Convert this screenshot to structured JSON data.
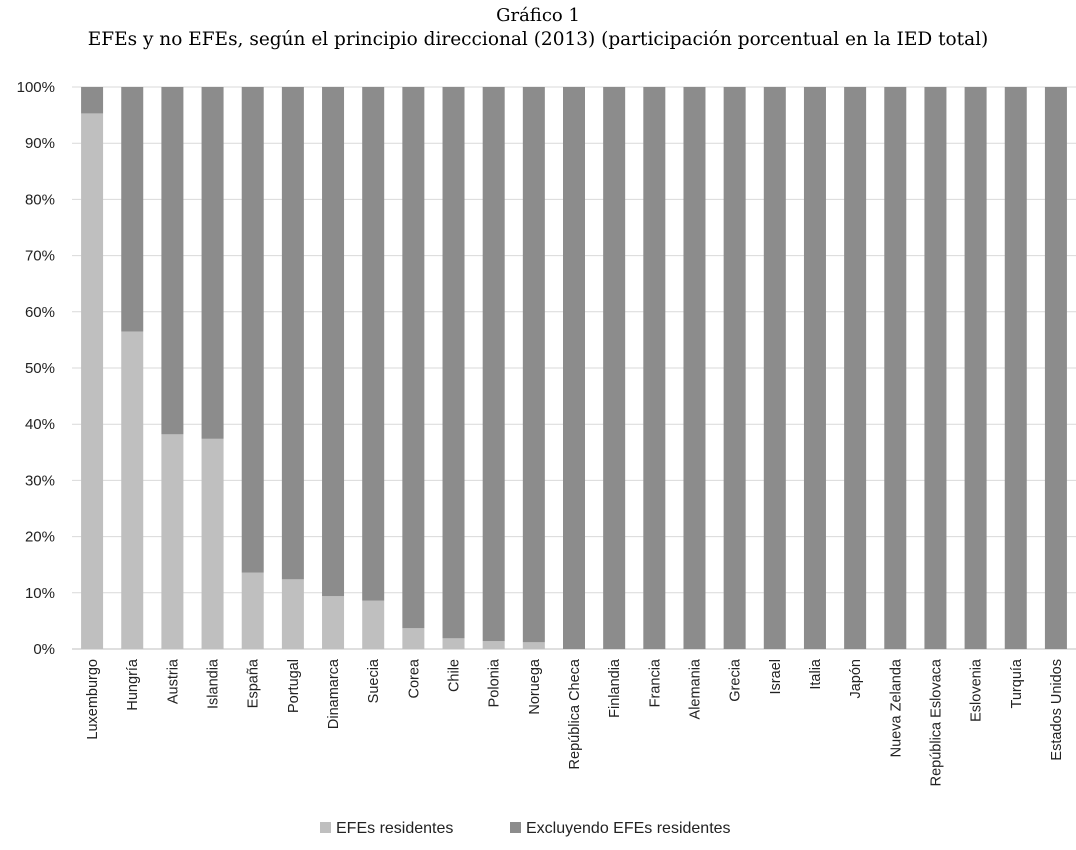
{
  "chart_data": {
    "type": "bar",
    "stacked": true,
    "percent_stacked": true,
    "title": "Gráfico 1",
    "subtitle": "EFEs y no EFEs, según el principio direccional  (2013) (participación porcentual en la IED total)",
    "xlabel": "",
    "ylabel": "",
    "ylim": [
      0,
      100
    ],
    "y_ticks": [
      "0%",
      "10%",
      "20%",
      "30%",
      "40%",
      "50%",
      "60%",
      "70%",
      "80%",
      "90%",
      "100%"
    ],
    "grid": true,
    "legend_position": "bottom",
    "categories": [
      "Luxemburgo",
      "Hungría",
      "Austria",
      "Islandia",
      "España",
      "Portugal",
      "Dinamarca",
      "Suecia",
      "Corea",
      "Chile",
      "Polonia",
      "Noruega",
      "República Checa",
      "Finlandia",
      "Francia",
      "Alemania",
      "Grecia",
      "Israel",
      "Italia",
      "Japón",
      "Nueva Zelanda",
      "República Eslovaca",
      "Eslovenia",
      "Turquía",
      "Estados Unidos"
    ],
    "series": [
      {
        "name": "EFEs residentes",
        "color": "#bfbfbf",
        "values": [
          95.3,
          56.5,
          38.2,
          37.4,
          13.6,
          12.4,
          9.4,
          8.6,
          3.7,
          1.9,
          1.4,
          1.2,
          0,
          0,
          0,
          0,
          0,
          0,
          0,
          0,
          0,
          0,
          0,
          0,
          0
        ]
      },
      {
        "name": "Excluyendo EFEs residentes",
        "color": "#8c8c8c",
        "values": [
          4.7,
          43.5,
          61.8,
          62.6,
          86.4,
          87.6,
          90.6,
          91.4,
          96.3,
          98.1,
          98.6,
          98.8,
          100,
          100,
          100,
          100,
          100,
          100,
          100,
          100,
          100,
          100,
          100,
          100,
          100
        ]
      }
    ]
  }
}
